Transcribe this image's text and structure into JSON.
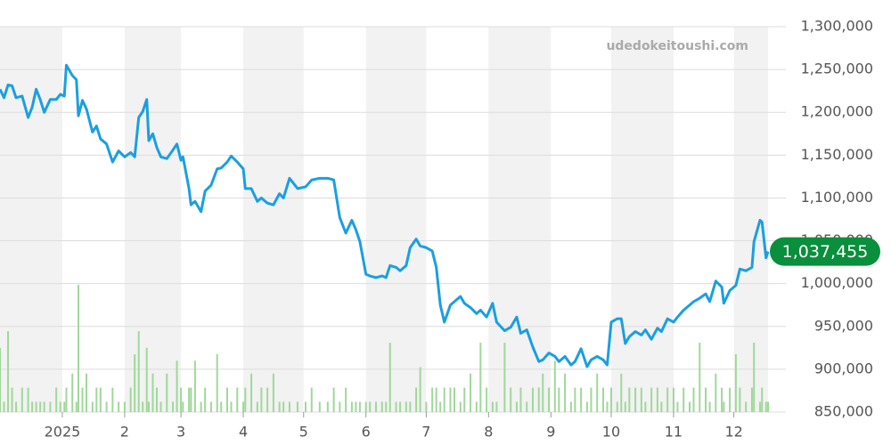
{
  "chart_data": {
    "type": "line",
    "watermark": "udedokeitoushi.com",
    "xlim": [
      0,
      382
    ],
    "xticks": [
      {
        "value": 31,
        "label": "2025"
      },
      {
        "value": 62,
        "label": "2"
      },
      {
        "value": 90,
        "label": "3"
      },
      {
        "value": 121,
        "label": "4"
      },
      {
        "value": 151,
        "label": "5"
      },
      {
        "value": 182,
        "label": "6"
      },
      {
        "value": 212,
        "label": "7"
      },
      {
        "value": 243,
        "label": "8"
      },
      {
        "value": 274,
        "label": "9"
      },
      {
        "value": 304,
        "label": "10"
      },
      {
        "value": 335,
        "label": "11"
      },
      {
        "value": 365,
        "label": "12"
      }
    ],
    "ylim": [
      850000,
      1300000
    ],
    "yticks": [
      {
        "value": 850000,
        "label": "850,000"
      },
      {
        "value": 900000,
        "label": "900,000"
      },
      {
        "value": 950000,
        "label": "950,000"
      },
      {
        "value": 1000000,
        "label": "1,000,000"
      },
      {
        "value": 1050000,
        "label": "1,050,000"
      },
      {
        "value": 1100000,
        "label": "1,100,000"
      },
      {
        "value": 1150000,
        "label": "1,150,000"
      },
      {
        "value": 1200000,
        "label": "1,200,000"
      },
      {
        "value": 1250000,
        "label": "1,250,000"
      },
      {
        "value": 1300000,
        "label": "1,300,000"
      }
    ],
    "y2lim": [
      0,
      300
    ],
    "grid": true,
    "current": {
      "value": 1037455,
      "label": "1,037,455",
      "color": "#0a8f3c"
    },
    "x": [
      0,
      2,
      4,
      6,
      8,
      11,
      14,
      16,
      18,
      20,
      22,
      25,
      28,
      30,
      32,
      33,
      36,
      38,
      39,
      41,
      43,
      46,
      48,
      50,
      53,
      56,
      59,
      62,
      65,
      67,
      69,
      71,
      73,
      74,
      76,
      78,
      80,
      83,
      86,
      88,
      90,
      91,
      94,
      95,
      97,
      100,
      102,
      105,
      108,
      110,
      113,
      115,
      118,
      121,
      122,
      125,
      128,
      130,
      133,
      136,
      139,
      141,
      144,
      148,
      152,
      155,
      159,
      163,
      166,
      169,
      172,
      175,
      177,
      179,
      182,
      184,
      187,
      190,
      192,
      194,
      197,
      199,
      202,
      204,
      207,
      209,
      212,
      215,
      217,
      219,
      221,
      224,
      226,
      229,
      231,
      234,
      237,
      239,
      242,
      245,
      247,
      251,
      254,
      257,
      259,
      262,
      265,
      268,
      270,
      273,
      276,
      278,
      281,
      284,
      286,
      289,
      292,
      294,
      297,
      300,
      302,
      304,
      307,
      309,
      311,
      313,
      316,
      319,
      321,
      324,
      327,
      329,
      332,
      335,
      337,
      340,
      343,
      345,
      348,
      351,
      353,
      356,
      359,
      360,
      363,
      366,
      368,
      371,
      374,
      375,
      378,
      379,
      381,
      382
    ],
    "series": [
      {
        "color": "#1a9fe0",
        "values": [
          1227000,
          1217000,
          1232000,
          1231000,
          1217000,
          1219000,
          1194000,
          1206000,
          1227000,
          1215000,
          1200000,
          1215000,
          1215000,
          1221000,
          1219000,
          1255000,
          1243000,
          1238000,
          1196000,
          1214000,
          1204000,
          1177000,
          1184000,
          1169000,
          1163000,
          1142000,
          1155000,
          1148000,
          1153000,
          1148000,
          1194000,
          1201000,
          1215000,
          1167000,
          1175000,
          1159000,
          1148000,
          1146000,
          1156000,
          1163000,
          1144000,
          1148000,
          1111000,
          1092000,
          1096000,
          1084000,
          1108000,
          1115000,
          1134000,
          1135000,
          1142000,
          1149000,
          1142000,
          1134000,
          1111000,
          1111000,
          1096000,
          1100000,
          1094000,
          1092000,
          1105000,
          1100000,
          1123000,
          1111000,
          1113000,
          1121000,
          1123000,
          1123000,
          1121000,
          1077000,
          1059000,
          1074000,
          1063000,
          1049000,
          1011000,
          1009000,
          1007000,
          1009000,
          1007000,
          1021000,
          1019000,
          1015000,
          1021000,
          1042000,
          1052000,
          1044000,
          1042000,
          1038000,
          1019000,
          975000,
          955000,
          975000,
          979000,
          985000,
          977000,
          972000,
          965000,
          969000,
          961000,
          977000,
          955000,
          945000,
          949000,
          961000,
          942000,
          946000,
          926000,
          909000,
          911000,
          919000,
          915000,
          909000,
          915000,
          905000,
          909000,
          924000,
          903000,
          911000,
          915000,
          911000,
          905000,
          955000,
          959000,
          959000,
          930000,
          938000,
          944000,
          940000,
          946000,
          935000,
          948000,
          944000,
          959000,
          955000,
          961000,
          969000,
          975000,
          979000,
          983000,
          988000,
          979000,
          1003000,
          996000,
          977000,
          992000,
          998000,
          1017000,
          1015000,
          1019000,
          1049000,
          1074000,
          1072000,
          1030000,
          1037455
        ]
      },
      {
        "type": "bar",
        "axis": "y2",
        "color": "#9fd89a",
        "values": [
          50,
          8,
          63,
          19,
          8,
          19,
          19,
          8,
          8,
          8,
          8,
          8,
          19,
          8,
          8,
          19,
          30,
          8,
          99,
          19,
          30,
          8,
          19,
          19,
          8,
          19,
          8,
          8,
          19,
          45,
          63,
          8,
          50,
          8,
          30,
          19,
          8,
          30,
          8,
          40,
          19,
          8,
          19,
          19,
          40,
          8,
          19,
          8,
          45,
          8,
          19,
          8,
          19,
          8,
          19,
          30,
          8,
          19,
          19,
          30,
          8,
          8,
          8,
          8,
          8,
          19,
          8,
          8,
          19,
          8,
          19,
          8,
          8,
          8,
          8,
          8,
          8,
          8,
          8,
          54,
          8,
          8,
          8,
          8,
          19,
          35,
          8,
          19,
          19,
          8,
          19,
          19,
          19,
          8,
          19,
          30,
          8,
          54,
          19,
          8,
          8,
          54,
          19,
          8,
          19,
          8,
          19,
          19,
          30,
          19,
          40,
          19,
          30,
          8,
          19,
          19,
          8,
          19,
          30,
          19,
          8,
          19,
          8,
          30,
          8,
          19,
          19,
          19,
          8,
          19,
          19,
          8,
          19,
          19,
          8,
          19,
          8,
          19,
          54,
          19,
          8,
          30,
          19,
          8,
          19,
          45,
          19,
          8,
          19,
          54,
          8,
          19,
          8,
          8
        ]
      }
    ]
  }
}
